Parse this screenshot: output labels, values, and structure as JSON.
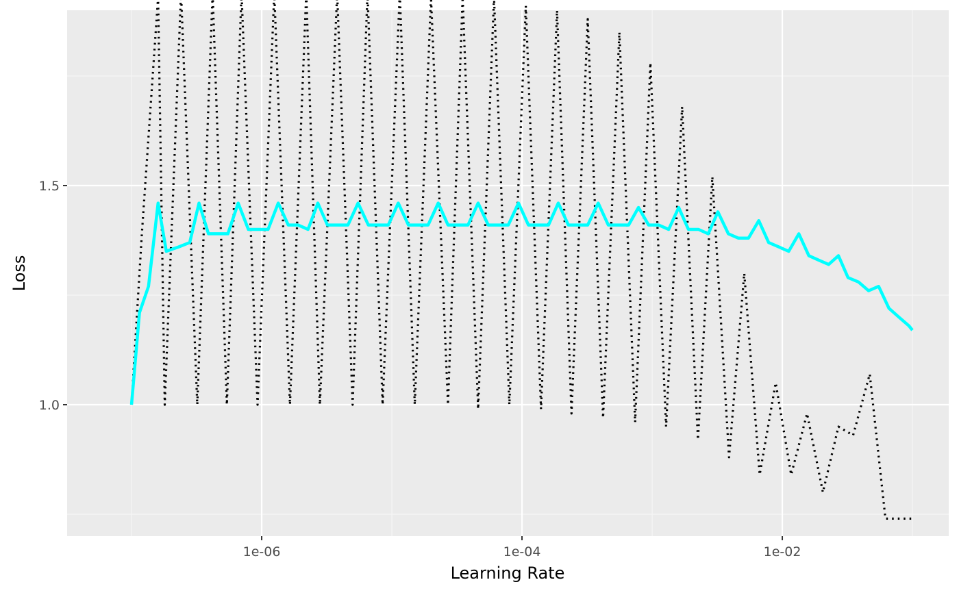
{
  "chart_data": {
    "type": "line",
    "title": "",
    "xlabel": "Learning Rate",
    "ylabel": "Loss",
    "x_scale": "log10",
    "xlim": [
      3.2e-08,
      0.19
    ],
    "ylim": [
      0.7,
      1.9
    ],
    "x_ticks": [
      {
        "value": 1e-06,
        "label": "1e-06"
      },
      {
        "value": 0.0001,
        "label": "1e-04"
      },
      {
        "value": 0.01,
        "label": "1e-02"
      }
    ],
    "y_ticks": [
      {
        "value": 1.0,
        "label": "1.0"
      },
      {
        "value": 1.5,
        "label": "1.5"
      }
    ],
    "grid": true,
    "legend": "none",
    "colors": {
      "panel": "#ebebeb",
      "grid_major": "#ffffff",
      "grid_minor": "#f5f5f5",
      "raw_loss": "#000000",
      "smoothed_loss": "#00ffff"
    },
    "series": [
      {
        "style": "dotted",
        "color": "#000000",
        "x": [
          1e-07,
          1.2e-07,
          1.6e-07,
          1.8e-07,
          2.4e-07,
          3.2e-07,
          4.2e-07,
          5.4e-07,
          7e-07,
          9.3e-07,
          1.25e-06,
          1.65e-06,
          2.2e-06,
          2.8e-06,
          3.8e-06,
          5e-06,
          6.5e-06,
          8.5e-06,
          1.15e-05,
          1.5e-05,
          2e-05,
          2.7e-05,
          3.5e-05,
          4.6e-05,
          6.1e-05,
          8e-05,
          0.000107,
          0.00014,
          0.000186,
          0.00024,
          0.00032,
          0.00042,
          0.00056,
          0.00074,
          0.00097,
          0.00128,
          0.0017,
          0.00225,
          0.0029,
          0.0039,
          0.0051,
          0.0067,
          0.0089,
          0.0117,
          0.0155,
          0.0205,
          0.027,
          0.035,
          0.047,
          0.062,
          0.082,
          0.1
        ],
        "y": [
          1.0,
          1.39,
          1.93,
          1.0,
          1.94,
          1.0,
          1.94,
          1.0,
          1.94,
          1.0,
          1.94,
          1.0,
          1.94,
          1.0,
          1.94,
          1.0,
          1.94,
          1.0,
          1.94,
          1.0,
          1.93,
          1.0,
          1.93,
          0.99,
          1.93,
          1.0,
          1.91,
          0.99,
          1.9,
          0.98,
          1.88,
          0.97,
          1.85,
          0.96,
          1.78,
          0.95,
          1.68,
          0.92,
          1.52,
          0.88,
          1.3,
          0.84,
          1.05,
          0.84,
          0.98,
          0.8,
          0.95,
          0.93,
          1.07,
          0.74,
          0.74,
          0.74
        ]
      },
      {
        "style": "solid",
        "color": "#00ffff",
        "x": [
          1e-07,
          1.15e-07,
          1.35e-07,
          1.6e-07,
          1.85e-07,
          2.3e-07,
          2.8e-07,
          3.3e-07,
          3.9e-07,
          4.7e-07,
          5.5e-07,
          6.6e-07,
          7.9e-07,
          9.4e-07,
          1.12e-06,
          1.34e-06,
          1.6e-06,
          1.9e-06,
          2.27e-06,
          2.7e-06,
          3.2e-06,
          3.85e-06,
          4.6e-06,
          5.5e-06,
          6.6e-06,
          7.85e-06,
          9.4e-06,
          1.12e-05,
          1.34e-05,
          1.6e-05,
          1.9e-05,
          2.27e-05,
          2.7e-05,
          3.2e-05,
          3.85e-05,
          4.6e-05,
          5.5e-05,
          6.6e-05,
          7.85e-05,
          9.4e-05,
          0.000112,
          0.000134,
          0.00016,
          0.00019,
          0.000227,
          0.00027,
          0.00032,
          0.000385,
          0.00046,
          0.00055,
          0.00066,
          0.000785,
          0.00094,
          0.00112,
          0.00134,
          0.0016,
          0.0019,
          0.00227,
          0.0027,
          0.0032,
          0.00385,
          0.0046,
          0.0055,
          0.0066,
          0.00785,
          0.0094,
          0.0112,
          0.0134,
          0.016,
          0.019,
          0.0227,
          0.027,
          0.032,
          0.0385,
          0.046,
          0.055,
          0.066,
          0.0785,
          0.094,
          0.1
        ],
        "y": [
          1.0,
          1.21,
          1.27,
          1.46,
          1.35,
          1.36,
          1.37,
          1.46,
          1.39,
          1.39,
          1.39,
          1.46,
          1.4,
          1.4,
          1.4,
          1.46,
          1.41,
          1.41,
          1.4,
          1.46,
          1.41,
          1.41,
          1.41,
          1.46,
          1.41,
          1.41,
          1.41,
          1.46,
          1.41,
          1.41,
          1.41,
          1.46,
          1.41,
          1.41,
          1.41,
          1.46,
          1.41,
          1.41,
          1.41,
          1.46,
          1.41,
          1.41,
          1.41,
          1.46,
          1.41,
          1.41,
          1.41,
          1.46,
          1.41,
          1.41,
          1.41,
          1.45,
          1.41,
          1.41,
          1.4,
          1.45,
          1.4,
          1.4,
          1.39,
          1.44,
          1.39,
          1.38,
          1.38,
          1.42,
          1.37,
          1.36,
          1.35,
          1.39,
          1.34,
          1.33,
          1.32,
          1.34,
          1.29,
          1.28,
          1.26,
          1.27,
          1.22,
          1.2,
          1.18,
          1.17
        ]
      }
    ]
  }
}
